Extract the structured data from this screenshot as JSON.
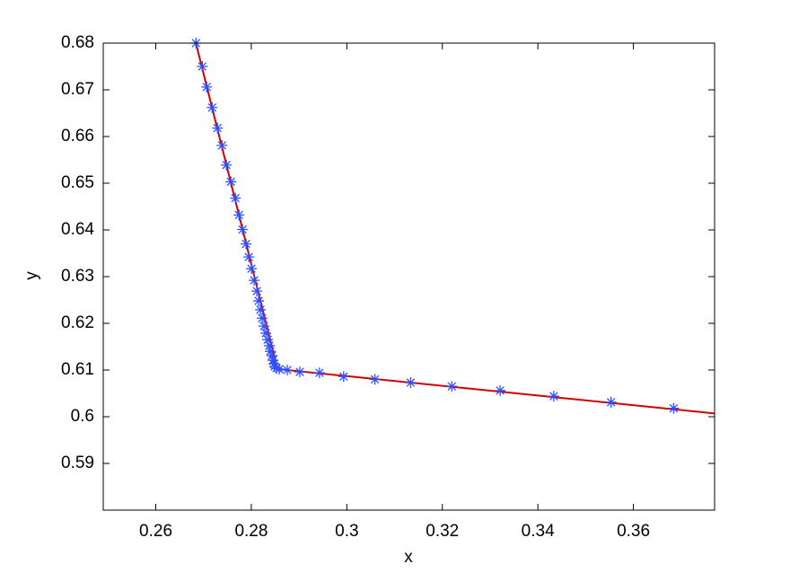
{
  "chart_data": {
    "type": "line",
    "xlabel": "x",
    "ylabel": "y",
    "xlim": [
      0.249,
      0.377
    ],
    "ylim": [
      0.58,
      0.68
    ],
    "xticks": [
      0.26,
      0.28,
      {
        "value": 0.3,
        "label": "0.3"
      },
      0.32,
      0.34,
      0.36
    ],
    "yticks": [
      0.59,
      {
        "value": 0.6,
        "label": "0.6"
      },
      0.61,
      0.62,
      0.63,
      0.64,
      0.65,
      0.66,
      0.67,
      0.68
    ],
    "series": [
      {
        "color": "#d00000",
        "marker": "none",
        "x": [
          0.2684,
          0.2855,
          0.377
        ],
        "values": [
          0.68,
          0.6102,
          0.6007
        ]
      },
      {
        "color": "#2f4fff",
        "marker": "asterisk",
        "x": [
          0.26843,
          0.26974,
          0.27067,
          0.2718,
          0.27292,
          0.27386,
          0.27479,
          0.27573,
          0.27667,
          0.27742,
          0.27816,
          0.27891,
          0.27948,
          0.28004,
          0.2806,
          0.28116,
          0.28154,
          0.28191,
          0.28228,
          0.28266,
          0.28303,
          0.28341,
          0.28378,
          0.28397,
          0.28434,
          0.28453,
          0.28472,
          0.28491,
          0.28528,
          0.28584,
          0.28753,
          0.29015,
          0.29427,
          0.29933,
          0.30588,
          0.31337,
          0.32199,
          0.3321,
          0.34333,
          0.35532,
          0.36843
        ],
        "values": [
          0.68,
          0.675,
          0.6706,
          0.6662,
          0.6618,
          0.6581,
          0.6539,
          0.6503,
          0.6468,
          0.6432,
          0.6401,
          0.637,
          0.6342,
          0.6317,
          0.6292,
          0.6269,
          0.6248,
          0.6229,
          0.6211,
          0.6194,
          0.6179,
          0.6165,
          0.6152,
          0.614,
          0.6131,
          0.6121,
          0.6113,
          0.6108,
          0.6104,
          0.6102,
          0.61,
          0.6096,
          0.6094,
          0.6086,
          0.608,
          0.6073,
          0.6065,
          0.6056,
          0.6044,
          0.6031,
          0.6018
        ]
      }
    ]
  }
}
